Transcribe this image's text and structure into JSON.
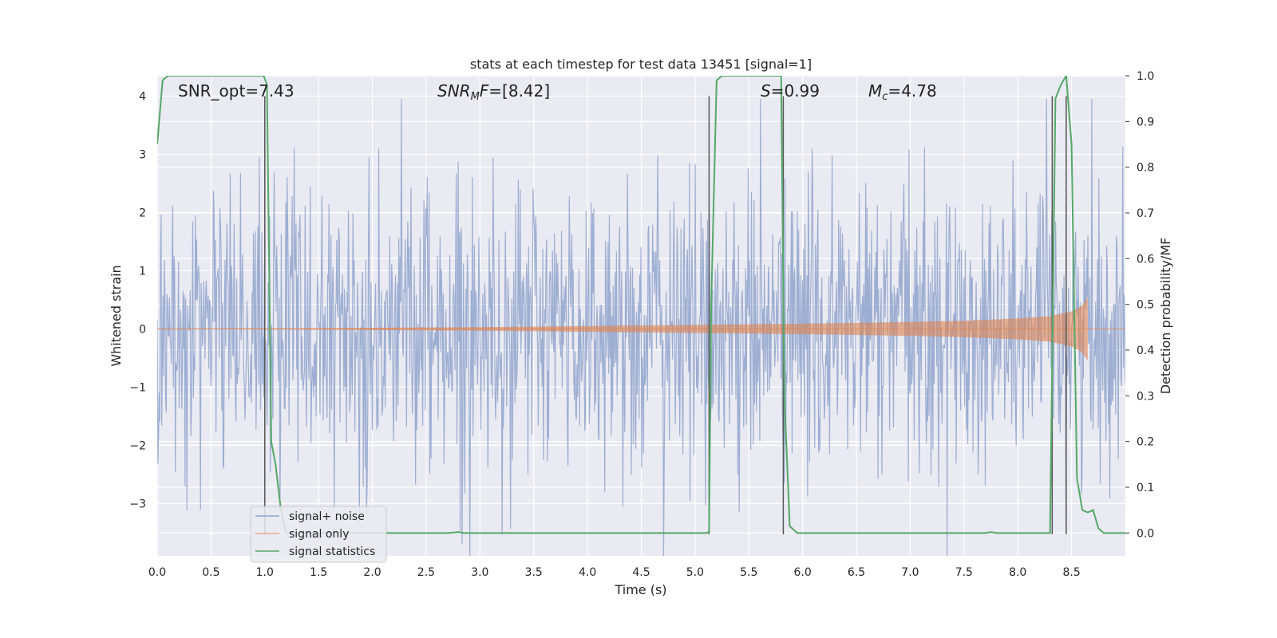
{
  "chart_data": {
    "type": "line",
    "title": "stats at each timestep for test data 13451 [signal=1]",
    "xlabel": "Time (s)",
    "ylabel_left": "Whitened strain",
    "ylabel_right": "Detection probability/MF",
    "xlim": [
      0.0,
      9.0
    ],
    "ylim_left": [
      -3.9,
      4.35
    ],
    "ylim_right": [
      -0.05,
      1.0
    ],
    "x_ticks": [
      "0.0",
      "0.5",
      "1.0",
      "1.5",
      "2.0",
      "2.5",
      "3.0",
      "3.5",
      "4.0",
      "4.5",
      "5.0",
      "5.5",
      "6.0",
      "6.5",
      "7.0",
      "7.5",
      "8.0",
      "8.5"
    ],
    "y_ticks_left": [
      "−3",
      "−2",
      "−1",
      "0",
      "1",
      "2",
      "3",
      "4"
    ],
    "y_ticks_right": [
      "0.0",
      "0.1",
      "0.2",
      "0.3",
      "0.4",
      "0.5",
      "0.6",
      "0.7",
      "0.8",
      "0.9",
      "1.0"
    ],
    "grid": true,
    "legend_position": "lower-left",
    "annotations": [
      {
        "prefix": "SNR_opt=",
        "value": "7.43",
        "x": 0.2
      },
      {
        "symbol": "SNR",
        "subscript": "M",
        "suffix": "F=",
        "value": "[8.42]",
        "x": 2.6
      },
      {
        "symbol": "S",
        "suffix": "=",
        "value": "0.99",
        "x": 5.62
      },
      {
        "symbol": "M",
        "subscript": "c",
        "suffix": "=",
        "value": "4.78",
        "x": 6.62
      }
    ],
    "vertical_lines_x": [
      1.0,
      5.13,
      5.82,
      8.32,
      8.45
    ],
    "series": [
      {
        "name": "signal+ noise",
        "color": "#8fa3cc",
        "description_stats": {
          "mean": 0,
          "std": 1,
          "noise_abs_max": 3.95
        }
      },
      {
        "name": "signal only",
        "color": "#dd8452",
        "envelope": {
          "x": [
            0.0,
            1.0,
            2.0,
            3.0,
            4.0,
            5.0,
            6.0,
            7.0,
            7.5,
            8.0,
            8.3,
            8.5,
            8.6,
            8.65
          ],
          "amp": [
            0.005,
            0.01,
            0.02,
            0.03,
            0.05,
            0.07,
            0.09,
            0.12,
            0.14,
            0.18,
            0.22,
            0.3,
            0.4,
            0.55
          ]
        },
        "end_x": 8.65
      },
      {
        "name": "signal statistics",
        "color": "#55a868",
        "axis": "right",
        "x": [
          0.0,
          0.05,
          0.1,
          0.5,
          0.99,
          1.02,
          1.06,
          1.1,
          1.15,
          1.2,
          2.7,
          2.8,
          2.85,
          5.1,
          5.13,
          5.15,
          5.2,
          5.25,
          5.5,
          5.8,
          5.83,
          5.88,
          5.95,
          7.7,
          7.75,
          7.8,
          8.3,
          8.35,
          8.4,
          8.45,
          8.5,
          8.55,
          8.6,
          8.65,
          8.7,
          8.75,
          8.8,
          9.0
        ],
        "y": [
          0.85,
          0.99,
          1.0,
          1.0,
          1.0,
          0.98,
          0.2,
          0.15,
          0.05,
          0.0,
          0.0,
          0.002,
          0.0,
          0.0,
          0.002,
          0.5,
          0.99,
          1.0,
          1.0,
          1.0,
          0.3,
          0.015,
          0.0,
          0.0,
          0.002,
          0.0,
          0.0,
          0.95,
          0.98,
          1.0,
          0.85,
          0.12,
          0.05,
          0.045,
          0.05,
          0.01,
          0.0,
          0.0
        ]
      }
    ]
  }
}
